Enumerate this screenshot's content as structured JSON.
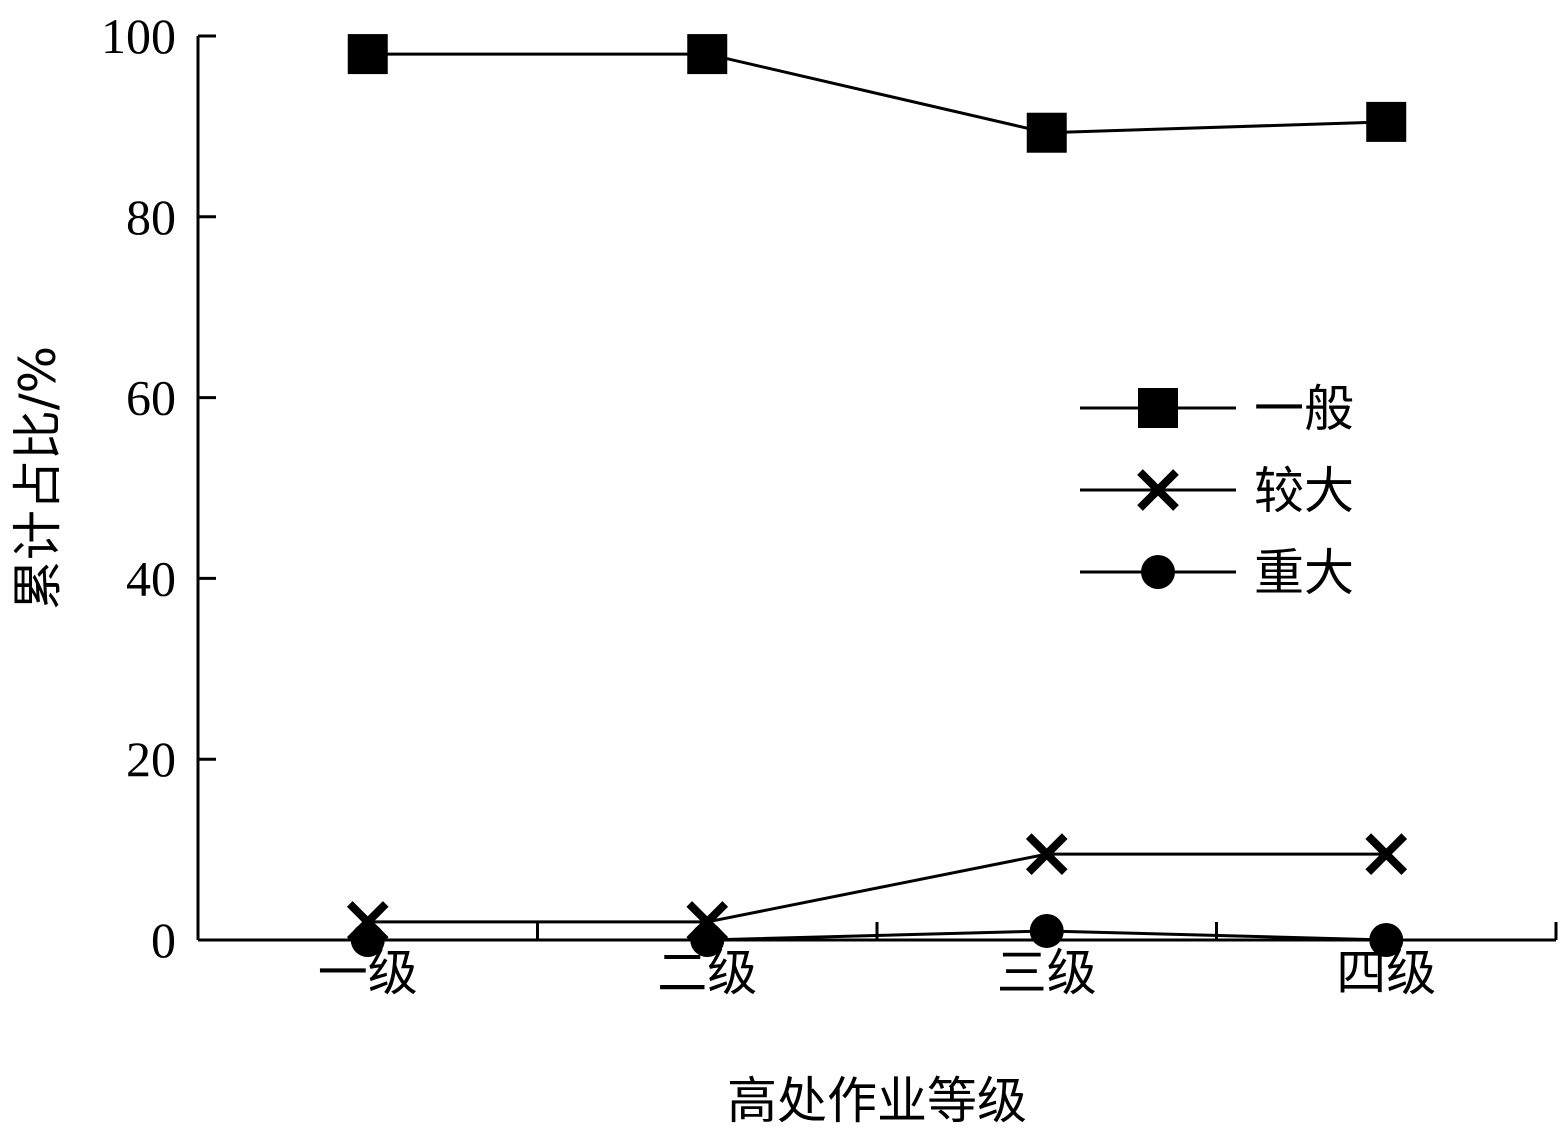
{
  "chart_data": {
    "type": "line",
    "title": "",
    "xlabel": "高处作业等级",
    "ylabel": "累计占比/%",
    "categories": [
      "一级",
      "二级",
      "三级",
      "四级"
    ],
    "ylim": [
      0,
      100
    ],
    "yticks": [
      0,
      20,
      40,
      60,
      80,
      100
    ],
    "grid": false,
    "legend_position": "right",
    "series": [
      {
        "name": "一般",
        "marker": "square",
        "values": [
          98,
          98,
          89.3,
          90.5
        ]
      },
      {
        "name": "较大",
        "marker": "x",
        "values": [
          2,
          2,
          9.5,
          9.5
        ]
      },
      {
        "name": "重大",
        "marker": "circle",
        "values": [
          0,
          0,
          1,
          0
        ]
      }
    ]
  }
}
